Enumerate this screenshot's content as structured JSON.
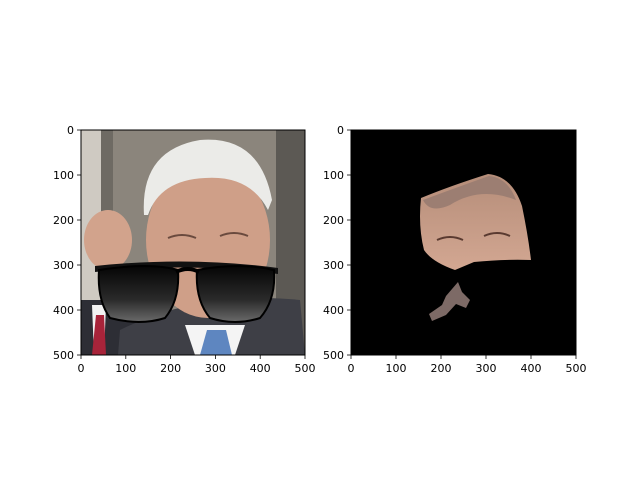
{
  "chart_data": [
    {
      "type": "image",
      "title": "",
      "xlabel": "",
      "ylabel": "",
      "xlim": [
        0,
        500
      ],
      "ylim": [
        500,
        0
      ],
      "xticks": [
        0,
        100,
        200,
        300,
        400,
        500
      ],
      "yticks": [
        0,
        100,
        200,
        300,
        400,
        500
      ],
      "xtick_labels": [
        "0",
        "100",
        "200",
        "300",
        "400",
        "500"
      ],
      "ytick_labels": [
        "0",
        "100",
        "200",
        "300",
        "400",
        "500"
      ],
      "image_description": "photo of a grey-haired man with black sunglasses overlaid on the face",
      "colors": {
        "background_wall": "#8b857c",
        "jacket": "#3e3f46",
        "tie": "#5e86c0",
        "hair": "#e9e9e6",
        "sunglasses": "#111111"
      }
    },
    {
      "type": "image",
      "title": "",
      "xlabel": "",
      "ylabel": "",
      "xlim": [
        0,
        500
      ],
      "ylim": [
        500,
        0
      ],
      "xticks": [
        0,
        100,
        200,
        300,
        400,
        500
      ],
      "yticks": [
        0,
        100,
        200,
        300,
        400,
        500
      ],
      "xtick_labels": [
        "0",
        "100",
        "200",
        "300",
        "400",
        "500"
      ],
      "ytick_labels": [
        "0",
        "100",
        "200",
        "300",
        "400",
        "500"
      ],
      "image_description": "segmentation mask: black background with only the face region (forehead to upper lip) and a small neck fragment visible",
      "colors": {
        "mask_background": "#000000",
        "skin": "#c79a85"
      }
    }
  ]
}
